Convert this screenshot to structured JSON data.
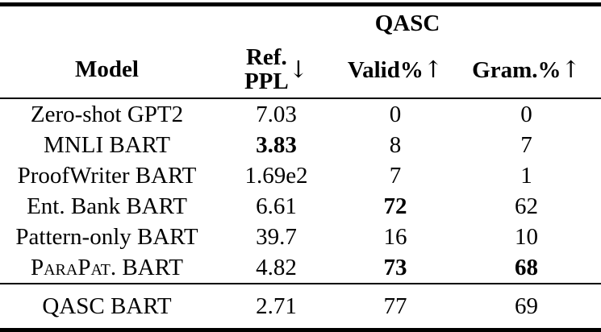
{
  "table": {
    "group_header": "QASC",
    "header": {
      "model": "Model",
      "ref_ppl_line1": "Ref.",
      "ref_ppl_line2": "PPL",
      "ref_ppl_arrow": "↓",
      "valid": "Valid%",
      "valid_arrow": "↑",
      "gram": "Gram.%",
      "gram_arrow": "↑"
    },
    "rows": [
      {
        "model": "Zero-shot GPT2",
        "ref_ppl": "7.03",
        "valid": "0",
        "gram": "0"
      },
      {
        "model": "MNLI BART",
        "ref_ppl": "3.83",
        "valid": "8",
        "gram": "7"
      },
      {
        "model": "ProofWriter BART",
        "ref_ppl": "1.69e2",
        "valid": "7",
        "gram": "1"
      },
      {
        "model": "Ent. Bank BART",
        "ref_ppl": "6.61",
        "valid": "72",
        "gram": "62"
      },
      {
        "model": "Pattern-only BART",
        "ref_ppl": "39.7",
        "valid": "16",
        "gram": "10"
      },
      {
        "model_smallcaps": "ParaPat.",
        "model_rest": " BART",
        "ref_ppl": "4.82",
        "valid": "73",
        "gram": "68"
      }
    ],
    "footer_row": {
      "model": "QASC BART",
      "ref_ppl": "2.71",
      "valid": "77",
      "gram": "69"
    },
    "emphasis_note_bold_values": [
      "3.83",
      "72",
      "73",
      "68"
    ],
    "colors": {
      "text": "#000000",
      "background": "#ffffff",
      "rule": "#000000"
    }
  }
}
